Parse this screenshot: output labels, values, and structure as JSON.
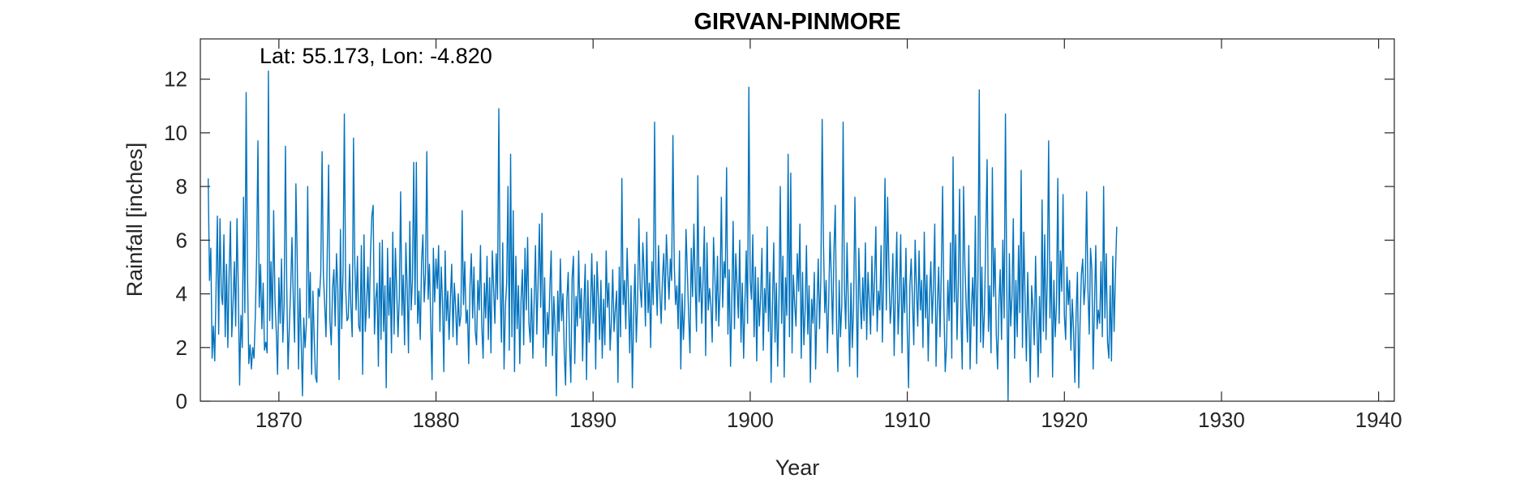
{
  "chart_data": {
    "type": "line",
    "title": "GIRVAN-PINMORE",
    "xlabel": "Year",
    "ylabel": "Rainfall [inches]",
    "annotation": "Lat: 55.173, Lon: -4.820",
    "xlim": [
      1865,
      1941
    ],
    "ylim": [
      0,
      13.5
    ],
    "xticks": [
      1870,
      1880,
      1890,
      1900,
      1910,
      1920,
      1930,
      1940
    ],
    "yticks": [
      0,
      2,
      4,
      6,
      8,
      10,
      12
    ],
    "grid": false,
    "series": [
      {
        "color": "#0072BD",
        "x_start": 1865.5,
        "x_step": 0.08333,
        "values": [
          8.3,
          4.5,
          5.7,
          1.6,
          2.8,
          1.5,
          4.2,
          6.9,
          2.5,
          6.8,
          4.0,
          3.6,
          6.2,
          2.4,
          5.1,
          2.0,
          4.8,
          6.7,
          2.4,
          3.7,
          5.2,
          2.8,
          6.8,
          4.1,
          0.6,
          3.2,
          2.0,
          7.6,
          3.3,
          11.5,
          4.9,
          1.4,
          2.1,
          1.2,
          2.0,
          1.6,
          3.2,
          5.4,
          9.7,
          3.5,
          5.1,
          2.7,
          4.4,
          1.9,
          2.2,
          1.8,
          12.3,
          3.0,
          5.2,
          2.7,
          7.1,
          3.8,
          2.6,
          1.0,
          4.6,
          2.9,
          5.3,
          2.2,
          3.6,
          9.5,
          4.3,
          1.2,
          2.8,
          4.2,
          6.1,
          3.8,
          2.2,
          8.1,
          5.3,
          1.2,
          4.2,
          2.3,
          0.2,
          3.1,
          2.0,
          2.9,
          8.0,
          3.1,
          4.8,
          1.0,
          4.1,
          2.3,
          0.9,
          0.7,
          4.2,
          3.9,
          4.8,
          9.3,
          4.7,
          3.6,
          2.4,
          5.7,
          8.8,
          3.0,
          2.1,
          4.2,
          4.9,
          2.8,
          5.5,
          4.2,
          0.8,
          6.4,
          2.7,
          4.8,
          10.7,
          4.2,
          3.0,
          3.1,
          5.1,
          3.5,
          2.4,
          9.8,
          5.1,
          3.4,
          5.4,
          2.8,
          2.6,
          5.8,
          1.0,
          6.2,
          2.6,
          3.6,
          5.0,
          3.1,
          5.5,
          6.9,
          7.3,
          2.5,
          3.8,
          4.4,
          1.3,
          5.9,
          2.3,
          6.0,
          2.6,
          4.3,
          0.5,
          5.7,
          3.2,
          4.6,
          1.8,
          6.3,
          2.5,
          5.7,
          4.1,
          2.4,
          3.9,
          7.8,
          3.2,
          4.7,
          2.1,
          5.9,
          4.2,
          1.8,
          6.7,
          3.4,
          4.5,
          8.9,
          3.6,
          8.9,
          2.9,
          4.1,
          2.3,
          5.2,
          6.2,
          3.7,
          4.8,
          9.3,
          3.8,
          5.1,
          2.9,
          0.8,
          5.7,
          3.7,
          5.3,
          4.2,
          5.8,
          2.6,
          5.0,
          3.7,
          1.1,
          5.6,
          3.0,
          4.1,
          2.3,
          3.8,
          5.1,
          2.4,
          4.4,
          3.5,
          2.1,
          4.0,
          2.8,
          3.2,
          7.1,
          3.6,
          5.2,
          2.9,
          3.4,
          1.4,
          4.3,
          5.5,
          3.1,
          5.0,
          2.6,
          2.1,
          4.5,
          3.4,
          5.8,
          2.8,
          1.6,
          4.4,
          3.1,
          5.4,
          2.3,
          4.6,
          1.8,
          5.6,
          4.2,
          2.9,
          5.5,
          3.8,
          10.9,
          4.3,
          2.2,
          5.9,
          1.2,
          3.5,
          4.4,
          8.0,
          1.9,
          9.2,
          2.4,
          7.1,
          1.1,
          5.4,
          2.7,
          4.3,
          1.4,
          3.8,
          4.9,
          2.1,
          5.7,
          3.4,
          6.1,
          2.9,
          2.2,
          4.2,
          1.6,
          3.7,
          5.8,
          2.5,
          4.4,
          6.6,
          3.5,
          7.0,
          2.0,
          4.6,
          1.3,
          3.3,
          2.5,
          4.2,
          5.6,
          1.7,
          3.9,
          2.8,
          0.2,
          4.1,
          2.6,
          5.3,
          3.0,
          4.0,
          1.8,
          0.6,
          3.8,
          4.8,
          2.2,
          0.7,
          4.6,
          5.4,
          1.4,
          3.9,
          2.8,
          5.6,
          3.1,
          4.2,
          1.5,
          3.6,
          5.1,
          0.8,
          4.5,
          2.2,
          3.3,
          5.5,
          2.9,
          4.7,
          1.2,
          5.2,
          3.9,
          2.3,
          4.5,
          1.6,
          3.8,
          2.1,
          5.6,
          3.5,
          4.4,
          1.9,
          3.0,
          4.9,
          2.6,
          3.4,
          4.1,
          0.7,
          5.0,
          2.4,
          8.3,
          3.6,
          4.5,
          2.7,
          5.7,
          3.9,
          1.8,
          4.3,
          0.5,
          3.2,
          5.1,
          2.2,
          3.7,
          6.8,
          4.2,
          3.5,
          5.9,
          4.8,
          2.8,
          6.3,
          3.3,
          4.4,
          2.0,
          5.2,
          3.6,
          10.4,
          4.7,
          3.2,
          5.8,
          4.1,
          2.9,
          4.6,
          5.5,
          3.4,
          6.2,
          4.9,
          3.8,
          5.3,
          4.5,
          9.9,
          5.1,
          3.6,
          4.3,
          2.7,
          5.6,
          1.2,
          4.0,
          2.3,
          3.5,
          6.4,
          4.8,
          3.2,
          1.8,
          5.7,
          3.9,
          6.6,
          4.4,
          2.6,
          8.4,
          3.7,
          5.0,
          2.9,
          4.5,
          6.5,
          1.7,
          5.9,
          3.4,
          4.2,
          3.6,
          2.2,
          6.1,
          4.7,
          3.0,
          5.4,
          2.8,
          4.1,
          7.6,
          3.5,
          5.2,
          4.6,
          8.7,
          2.5,
          4.9,
          1.3,
          3.8,
          6.7,
          2.7,
          5.5,
          4.3,
          3.1,
          6.0,
          2.2,
          4.4,
          1.6,
          3.7,
          5.6,
          2.9,
          11.7,
          4.5,
          3.8,
          6.2,
          2.4,
          5.0,
          1.5,
          4.6,
          2.8,
          3.9,
          5.7,
          1.9,
          4.2,
          3.3,
          6.5,
          2.6,
          4.8,
          0.7,
          3.5,
          5.9,
          2.2,
          4.4,
          1.3,
          3.7,
          8.0,
          2.9,
          5.4,
          0.9,
          4.6,
          3.2,
          9.2,
          2.4,
          8.5,
          1.8,
          4.7,
          3.6,
          2.8,
          5.5,
          4.1,
          6.6,
          1.6,
          4.8,
          2.1,
          3.4,
          5.8,
          2.5,
          4.3,
          0.7,
          3.8,
          2.9,
          4.8,
          1.2,
          3.4,
          5.3,
          2.7,
          4.6,
          10.5,
          5.9,
          3.3,
          4.5,
          1.8,
          3.7,
          6.3,
          4.6,
          2.5,
          5.6,
          7.3,
          2.9,
          1.1,
          4.5,
          2.4,
          3.6,
          10.4,
          4.2,
          2.7,
          5.9,
          3.5,
          1.3,
          4.4,
          2.0,
          3.5,
          7.6,
          4.3,
          0.9,
          5.7,
          3.8,
          2.7,
          4.6,
          3.0,
          5.9,
          2.3,
          4.8,
          3.7,
          2.5,
          5.4,
          3.2,
          4.5,
          6.5,
          2.6,
          4.1,
          3.4,
          5.8,
          2.2,
          4.7,
          8.3,
          3.4,
          7.6,
          4.9,
          2.9,
          3.7,
          5.5,
          1.7,
          4.2,
          6.3,
          2.5,
          3.9,
          6.2,
          1.8,
          4.6,
          3.3,
          5.7,
          2.6,
          0.5,
          4.3,
          5.3,
          3.7,
          2.1,
          6.0,
          4.2,
          2.8,
          5.6,
          3.4,
          4.5,
          2.0,
          6.3,
          3.1,
          4.7,
          1.5,
          3.8,
          5.2,
          2.9,
          4.3,
          6.6,
          1.3,
          3.6,
          5.0,
          2.4,
          4.8,
          8.0,
          3.5,
          1.1,
          2.1,
          4.5,
          3.0,
          5.9,
          1.6,
          9.1,
          3.7,
          6.2,
          2.3,
          4.4,
          7.9,
          3.2,
          1.2,
          8.0,
          5.1,
          3.6,
          2.2,
          5.8,
          1.2,
          3.5,
          4.6,
          2.8,
          6.9,
          1.4,
          4.7,
          11.6,
          2.2,
          5.0,
          2.0,
          3.4,
          6.2,
          9.0,
          2.6,
          4.3,
          1.8,
          8.7,
          3.9,
          5.7,
          2.5,
          1.2,
          3.6,
          4.9,
          2.3,
          6.0,
          3.1,
          10.7,
          4.4,
          0.0,
          5.5,
          2.8,
          3.9,
          6.8,
          1.6,
          4.5,
          2.4,
          5.8,
          3.3,
          8.6,
          2.0,
          6.3,
          3.8,
          1.5,
          4.8,
          2.9,
          0.7,
          4.3,
          3.5,
          2.1,
          5.4,
          3.0,
          0.9,
          3.9,
          1.8,
          7.5,
          2.6,
          6.2,
          2.3,
          4.7,
          9.7,
          3.1,
          5.2,
          0.9,
          4.5,
          2.4,
          3.6,
          8.3,
          2.9,
          5.6,
          4.1,
          7.7,
          3.2,
          2.3,
          5.0,
          3.6,
          4.5,
          1.9,
          3.8,
          2.7,
          0.7,
          3.3,
          4.8,
          0.5,
          2.9,
          4.7,
          5.3,
          3.6,
          4.4,
          7.8,
          4.2,
          2.5,
          5.7,
          4.9,
          1.2,
          3.5,
          5.8,
          2.7,
          3.4,
          2.9,
          5.2,
          2.4,
          8.0,
          3.1,
          5.5,
          2.2,
          1.6,
          4.3,
          1.5,
          5.4,
          2.6,
          4.7,
          6.5
        ]
      }
    ]
  }
}
